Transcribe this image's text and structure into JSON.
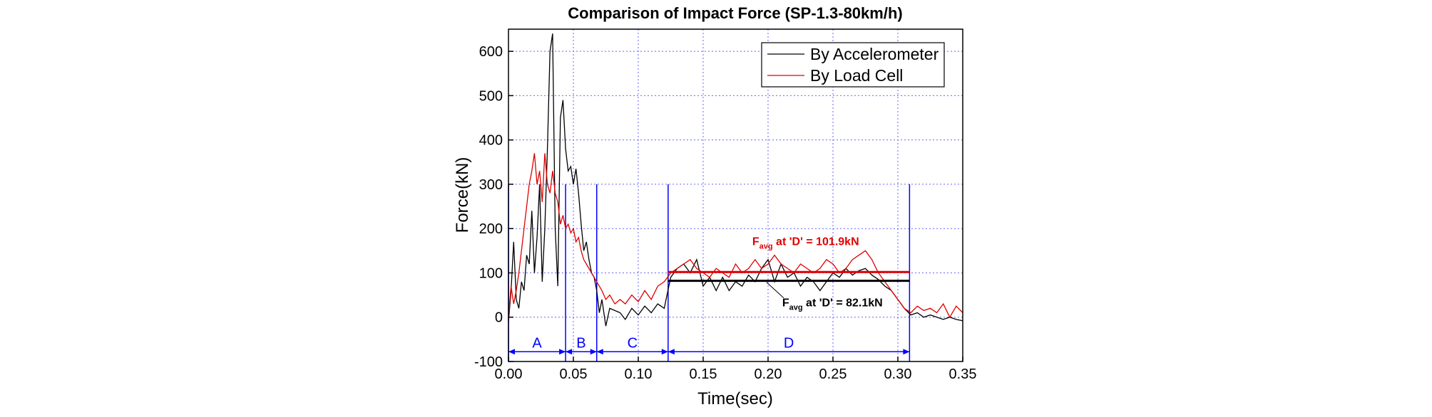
{
  "chart_data": {
    "type": "line",
    "title": "Comparison of Impact Force (SP-1.3-80km/h)",
    "x_label": "Time(sec)",
    "y_label": "Force(kN)",
    "x": [
      0,
      0.002,
      0.004,
      0.006,
      0.008,
      0.01,
      0.012,
      0.014,
      0.016,
      0.018,
      0.02,
      0.022,
      0.024,
      0.026,
      0.028,
      0.03,
      0.032,
      0.034,
      0.036,
      0.038,
      0.04,
      0.042,
      0.044,
      0.046,
      0.048,
      0.05,
      0.052,
      0.054,
      0.056,
      0.058,
      0.06,
      0.062,
      0.064,
      0.066,
      0.068,
      0.07,
      0.072,
      0.075,
      0.078,
      0.082,
      0.086,
      0.09,
      0.095,
      0.1,
      0.105,
      0.11,
      0.115,
      0.12,
      0.125,
      0.13,
      0.135,
      0.14,
      0.145,
      0.15,
      0.155,
      0.16,
      0.165,
      0.17,
      0.175,
      0.18,
      0.185,
      0.19,
      0.195,
      0.2,
      0.205,
      0.21,
      0.215,
      0.22,
      0.225,
      0.23,
      0.235,
      0.24,
      0.245,
      0.25,
      0.255,
      0.26,
      0.265,
      0.27,
      0.275,
      0.28,
      0.285,
      0.29,
      0.295,
      0.3,
      0.305,
      0.31,
      0.315,
      0.32,
      0.325,
      0.33,
      0.335,
      0.34,
      0.345,
      0.35
    ],
    "series": [
      {
        "name": "By Accelerometer",
        "color": "#000000",
        "values": [
          -10,
          60,
          170,
          40,
          20,
          80,
          60,
          140,
          120,
          240,
          100,
          180,
          300,
          80,
          200,
          380,
          600,
          640,
          200,
          70,
          450,
          490,
          380,
          330,
          340,
          300,
          335,
          280,
          210,
          150,
          170,
          130,
          100,
          90,
          60,
          10,
          40,
          -20,
          20,
          15,
          10,
          -5,
          20,
          5,
          25,
          10,
          30,
          20,
          90,
          110,
          120,
          100,
          130,
          70,
          90,
          60,
          90,
          60,
          80,
          70,
          95,
          80,
          110,
          130,
          80,
          120,
          90,
          100,
          70,
          90,
          80,
          60,
          80,
          100,
          90,
          110,
          95,
          105,
          110,
          95,
          85,
          70,
          60,
          40,
          20,
          5,
          10,
          0,
          5,
          0,
          -5,
          0,
          -5,
          -8
        ]
      },
      {
        "name": "By Load Cell",
        "color": "#e00000",
        "values": [
          0,
          70,
          30,
          60,
          100,
          150,
          200,
          250,
          300,
          330,
          370,
          300,
          330,
          260,
          370,
          300,
          280,
          330,
          280,
          260,
          210,
          230,
          200,
          210,
          190,
          200,
          170,
          180,
          150,
          130,
          120,
          110,
          100,
          90,
          80,
          70,
          60,
          40,
          50,
          30,
          40,
          30,
          50,
          35,
          60,
          40,
          70,
          80,
          100,
          110,
          120,
          130,
          110,
          100,
          90,
          110,
          100,
          90,
          120,
          100,
          110,
          130,
          110,
          120,
          140,
          120,
          110,
          100,
          120,
          110,
          100,
          110,
          130,
          120,
          100,
          110,
          130,
          140,
          150,
          130,
          100,
          80,
          60,
          40,
          20,
          10,
          25,
          15,
          20,
          10,
          30,
          0,
          25,
          10
        ]
      }
    ],
    "xlim": [
      0,
      0.35
    ],
    "ylim": [
      -100,
      650
    ],
    "xticks": [
      {
        "value": 0,
        "label": "0.00"
      },
      {
        "value": 0.05,
        "label": "0.05"
      },
      {
        "value": 0.1,
        "label": "0.10"
      },
      {
        "value": 0.15,
        "label": "0.15"
      },
      {
        "value": 0.2,
        "label": "0.20"
      },
      {
        "value": 0.25,
        "label": "0.25"
      },
      {
        "value": 0.3,
        "label": "0.30"
      },
      {
        "value": 0.35,
        "label": "0.35"
      }
    ],
    "yticks": [
      -100,
      0,
      100,
      200,
      300,
      400,
      500,
      600
    ],
    "grid": true,
    "legend": "upper right",
    "phases": {
      "labels": [
        "A",
        "B",
        "C",
        "D"
      ],
      "boundaries": [
        0,
        0.044,
        0.068,
        0.123,
        0.309
      ],
      "boundary_top": 300,
      "arrow_y": -78,
      "color": "#0000ff"
    },
    "averages": [
      {
        "value": 101.9,
        "color": "#e00000",
        "phase_index": 3,
        "label_main": "F",
        "label_sub": "avg",
        "label_rest": " at 'D' = 101.9kN"
      },
      {
        "value": 82.1,
        "color": "#000000",
        "phase_index": 3,
        "label_main": "F",
        "label_sub": "avg",
        "label_rest": " at 'D' = 82.1kN"
      }
    ]
  }
}
